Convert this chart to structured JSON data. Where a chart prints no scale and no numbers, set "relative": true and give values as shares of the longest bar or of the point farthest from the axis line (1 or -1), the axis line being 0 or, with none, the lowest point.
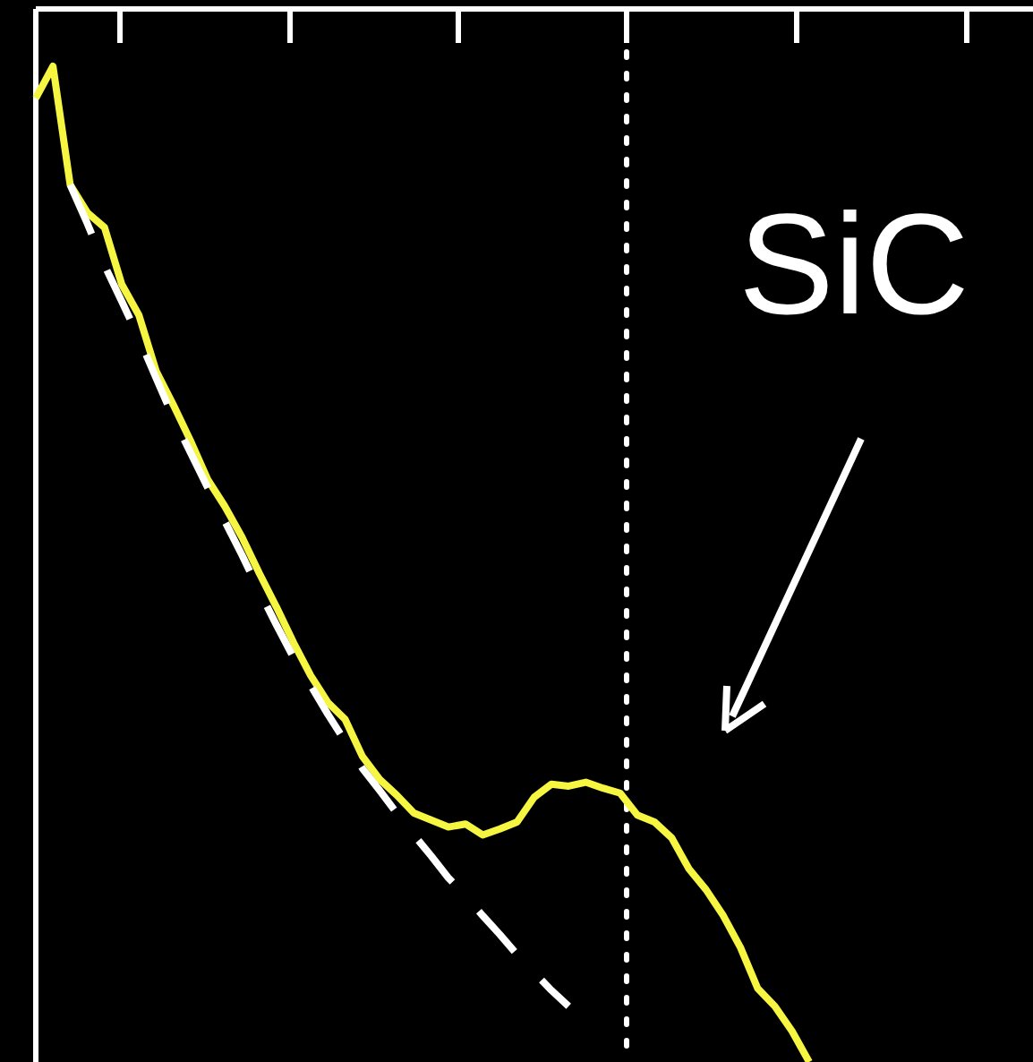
{
  "chart_data": {
    "type": "line",
    "relative": true,
    "categories": [
      null,
      null,
      null,
      null,
      null,
      null,
      null,
      null,
      null,
      null,
      null,
      null,
      null,
      null,
      null,
      null,
      null,
      null,
      null,
      null,
      null,
      null,
      null,
      null,
      null,
      null,
      null,
      null,
      null,
      null,
      null,
      null,
      null,
      null,
      null,
      null,
      null,
      null,
      null,
      null,
      null,
      null,
      null,
      null,
      null,
      null
    ],
    "series": [
      {
        "color": "#f5f542",
        "line_style": "solid",
        "values": [
          0.968,
          1,
          0.881,
          0.853,
          0.838,
          0.781,
          0.75,
          0.694,
          0.66,
          0.624,
          0.585,
          0.558,
          0.527,
          0.491,
          0.457,
          0.421,
          0.388,
          0.361,
          0.344,
          0.307,
          0.284,
          0.268,
          0.25,
          0.243,
          0.236,
          0.239,
          0.228,
          0.234,
          0.241,
          0.266,
          0.279,
          0.277,
          0.281,
          0.275,
          0.27,
          0.248,
          0.241,
          0.225,
          0.194,
          0.173,
          0.147,
          0.115,
          0.074,
          0.056,
          0.031,
          0
        ]
      },
      {
        "color": "#ffffff",
        "line_style": "dashed",
        "values": [
          null,
          null,
          0.881,
          0.842,
          0.8,
          0.764,
          0.727,
          0.687,
          0.647,
          0.612,
          0.577,
          0.543,
          0.509,
          0.473,
          0.439,
          0.406,
          0.378,
          0.349,
          0.322,
          0.295,
          0.273,
          0.25,
          0.228,
          0.207,
          0.185,
          0.167,
          0.147,
          0.128,
          0.108,
          0.09,
          0.072,
          0.056,
          null,
          null,
          null,
          null,
          null,
          null,
          null,
          null,
          null,
          null,
          null,
          null,
          null,
          null
        ]
      }
    ],
    "annotations": [
      "SiC"
    ]
  }
}
